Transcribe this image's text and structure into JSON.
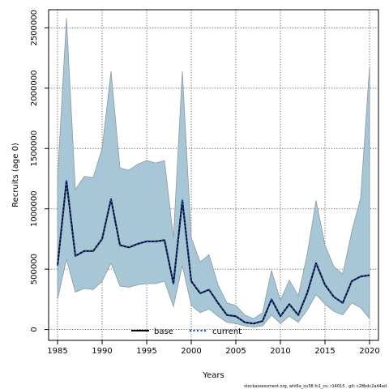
{
  "chart_data": {
    "type": "line",
    "xlabel": "Years",
    "ylabel": "Recruits (age 0)",
    "xlim": [
      1984,
      2021
    ],
    "ylim": [
      -90000,
      2650000
    ],
    "xticks": [
      1985,
      1990,
      1995,
      2000,
      2005,
      2010,
      2015,
      2020
    ],
    "yticks": [
      0,
      500000,
      1000000,
      1500000,
      2000000,
      2500000
    ],
    "grid": true,
    "grid_style": "dotted",
    "legend_position": "bottom-center",
    "x": [
      1985,
      1986,
      1987,
      1988,
      1989,
      1990,
      1991,
      1992,
      1993,
      1994,
      1995,
      1996,
      1997,
      1998,
      1999,
      2000,
      2001,
      2002,
      2003,
      2004,
      2005,
      2006,
      2007,
      2008,
      2009,
      2010,
      2011,
      2012,
      2013,
      2014,
      2015,
      2016,
      2017,
      2018,
      2019,
      2020
    ],
    "band": {
      "upper": [
        1250000,
        2580000,
        1160000,
        1270000,
        1260000,
        1500000,
        2140000,
        1340000,
        1320000,
        1370000,
        1400000,
        1380000,
        1400000,
        760000,
        2140000,
        760000,
        560000,
        620000,
        370000,
        220000,
        200000,
        120000,
        90000,
        140000,
        490000,
        240000,
        410000,
        280000,
        620000,
        1070000,
        700000,
        520000,
        460000,
        810000,
        1090000,
        2180000
      ],
      "lower": [
        250000,
        580000,
        310000,
        340000,
        330000,
        400000,
        550000,
        360000,
        350000,
        370000,
        380000,
        380000,
        400000,
        190000,
        530000,
        200000,
        140000,
        170000,
        110000,
        60000,
        50000,
        30000,
        20000,
        30000,
        120000,
        50000,
        110000,
        60000,
        160000,
        290000,
        210000,
        150000,
        120000,
        220000,
        180000,
        90000
      ],
      "fill_color": "#a7c6d6",
      "edge_color": "#8a9aa2"
    },
    "series": [
      {
        "name": "base",
        "color": "#000000",
        "style": "solid",
        "values": [
          530000,
          1230000,
          610000,
          650000,
          650000,
          750000,
          1080000,
          700000,
          680000,
          710000,
          730000,
          730000,
          740000,
          380000,
          1070000,
          400000,
          300000,
          330000,
          220000,
          120000,
          110000,
          60000,
          50000,
          70000,
          250000,
          110000,
          210000,
          120000,
          300000,
          550000,
          370000,
          270000,
          220000,
          400000,
          440000,
          450000
        ]
      },
      {
        "name": "current",
        "color": "#1f4fb4",
        "style": "dotted",
        "values": [
          530000,
          1230000,
          610000,
          650000,
          650000,
          750000,
          1080000,
          700000,
          680000,
          710000,
          730000,
          730000,
          740000,
          380000,
          1070000,
          400000,
          300000,
          330000,
          220000,
          120000,
          110000,
          60000,
          50000,
          70000,
          250000,
          110000,
          210000,
          120000,
          300000,
          550000,
          370000,
          270000,
          220000,
          400000,
          440000,
          450000
        ]
      }
    ],
    "footnote": "stockassessment.org, whi6a_ov38 fc1_co, r14015 , git: c28bdc2a44ad"
  }
}
